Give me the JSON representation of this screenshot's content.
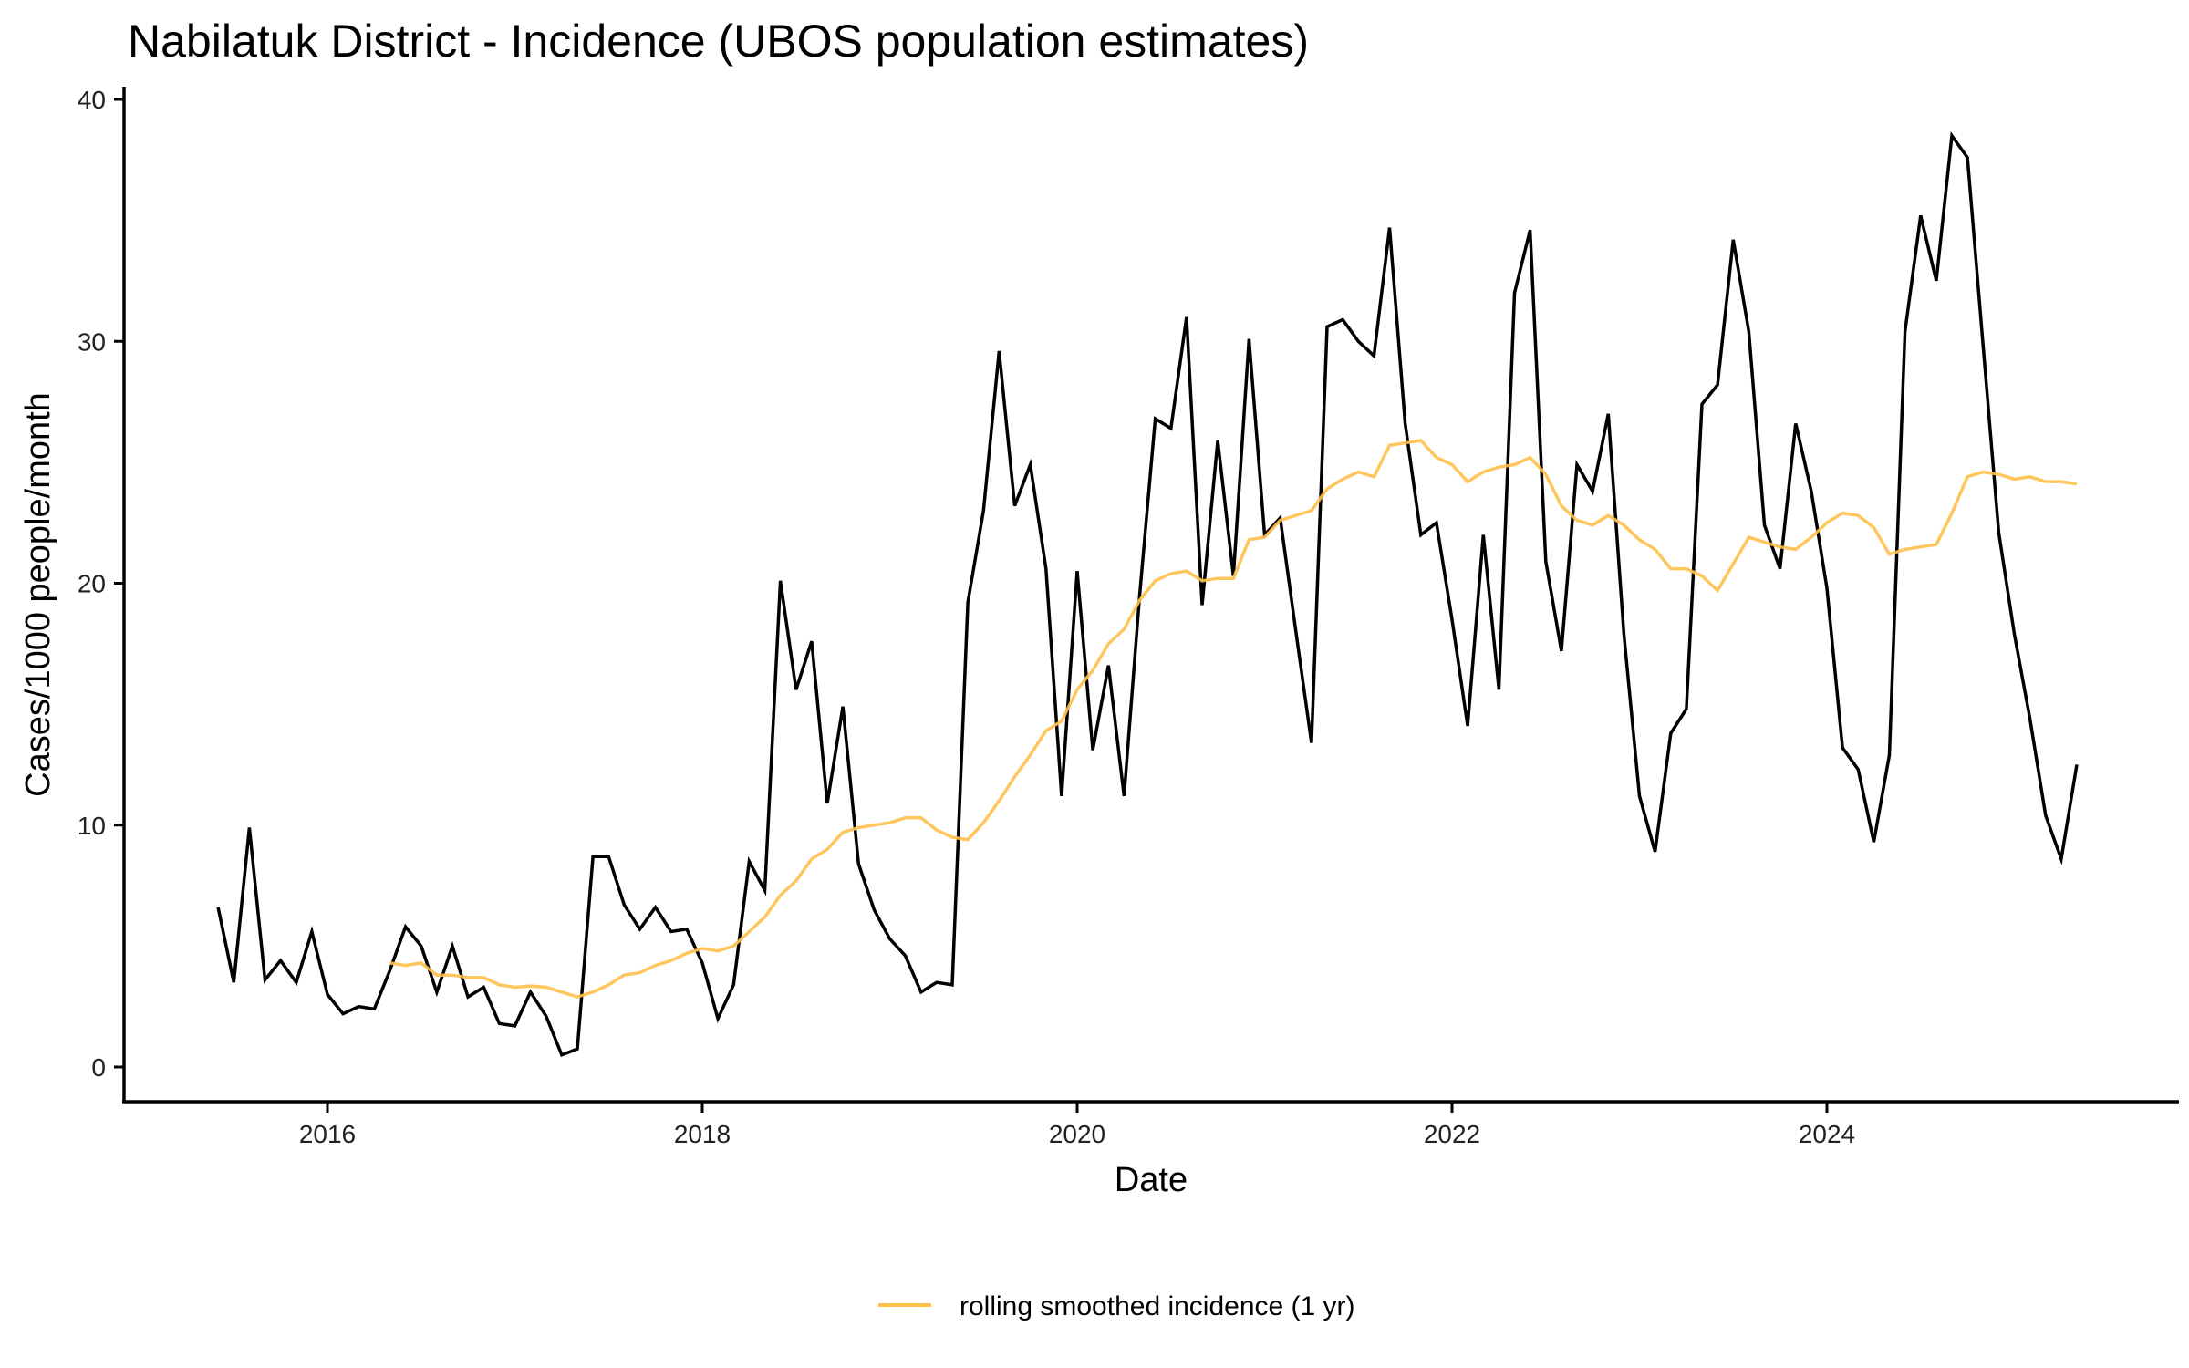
{
  "chart_data": {
    "type": "line",
    "title": "Nabilatuk District - Incidence (UBOS population estimates)",
    "xlabel": "Date",
    "ylabel": "Cases/1000 people/month",
    "xlim": [
      2014.92,
      2025.88
    ],
    "ylim": [
      -1.4,
      40.5
    ],
    "x_ticks": [
      2016,
      2018,
      2020,
      2022,
      2024
    ],
    "x_tick_labels": [
      "2016",
      "2018",
      "2020",
      "2022",
      "2024"
    ],
    "y_ticks": [
      0,
      10,
      20,
      30,
      40
    ],
    "y_tick_labels": [
      "0",
      "10",
      "20",
      "30",
      "40"
    ],
    "grid": false,
    "legend": {
      "position": "bottom",
      "entries": [
        {
          "label": "rolling smoothed incidence (1 yr)",
          "series": "smoothed"
        }
      ]
    },
    "start_month": "2015-06",
    "series": [
      {
        "name": "incidence",
        "color": "#000000",
        "values": [
          6.6,
          3.5,
          9.9,
          3.6,
          4.4,
          3.5,
          5.6,
          3.0,
          2.2,
          2.5,
          2.4,
          4.0,
          5.8,
          5.0,
          3.1,
          5.0,
          2.9,
          3.3,
          1.8,
          1.7,
          3.1,
          2.1,
          0.5,
          0.75,
          8.7,
          8.7,
          6.7,
          5.7,
          6.6,
          5.6,
          5.7,
          4.3,
          2.0,
          3.4,
          8.5,
          7.3,
          20.1,
          15.6,
          17.6,
          10.9,
          14.9,
          8.4,
          6.5,
          5.3,
          4.6,
          3.1,
          3.5,
          3.4,
          19.2,
          23.0,
          29.6,
          23.2,
          24.9,
          20.6,
          11.2,
          20.5,
          13.1,
          16.6,
          11.2,
          19.5,
          26.8,
          26.4,
          31.0,
          19.1,
          25.9,
          20.3,
          30.1,
          22.0,
          22.7,
          18.0,
          13.4,
          30.6,
          30.9,
          30.0,
          29.4,
          34.7,
          26.6,
          22.0,
          22.5,
          18.5,
          14.1,
          22.0,
          15.6,
          32.0,
          34.6,
          20.9,
          17.2,
          24.9,
          23.8,
          27.0,
          17.9,
          11.2,
          8.9,
          13.8,
          14.8,
          27.4,
          28.2,
          34.2,
          30.4,
          22.4,
          20.6,
          26.6,
          23.8,
          19.8,
          13.2,
          12.3,
          9.3,
          12.9,
          30.4,
          35.2,
          32.5,
          38.5,
          37.6,
          29.8,
          22.1,
          17.9,
          14.4,
          10.4,
          8.6,
          12.5
        ]
      },
      {
        "name": "smoothed",
        "color": "#FFC04C",
        "values": [
          null,
          null,
          null,
          null,
          null,
          null,
          null,
          null,
          null,
          null,
          null,
          4.3,
          4.2,
          4.3,
          3.8,
          3.8,
          3.7,
          3.7,
          3.4,
          3.3,
          3.35,
          3.3,
          3.1,
          2.9,
          3.1,
          3.4,
          3.8,
          3.9,
          4.2,
          4.4,
          4.7,
          4.9,
          4.8,
          5.0,
          5.6,
          6.2,
          7.1,
          7.7,
          8.6,
          9.0,
          9.7,
          9.9,
          10.0,
          10.1,
          10.3,
          10.3,
          9.8,
          9.5,
          9.4,
          10.1,
          11.0,
          12.0,
          12.9,
          13.9,
          14.3,
          15.6,
          16.4,
          17.5,
          18.1,
          19.3,
          20.1,
          20.4,
          20.5,
          20.1,
          20.2,
          20.2,
          21.8,
          21.9,
          22.6,
          22.8,
          23.0,
          23.9,
          24.3,
          24.6,
          24.4,
          25.7,
          25.8,
          25.9,
          25.2,
          24.9,
          24.2,
          24.6,
          24.8,
          24.9,
          25.2,
          24.5,
          23.2,
          22.6,
          22.4,
          22.8,
          22.4,
          21.8,
          21.4,
          20.6,
          20.6,
          20.3,
          19.7,
          20.8,
          21.9,
          21.7,
          21.5,
          21.4,
          21.9,
          22.5,
          22.9,
          22.8,
          22.3,
          21.2,
          21.4,
          21.5,
          21.6,
          22.9,
          24.4,
          24.6,
          24.5,
          24.3,
          24.4,
          24.2,
          24.2,
          24.1
        ]
      }
    ]
  }
}
